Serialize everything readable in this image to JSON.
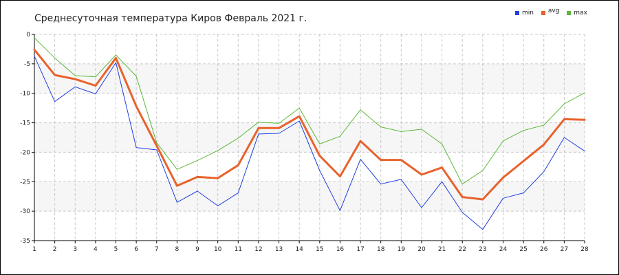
{
  "chart_data": {
    "type": "line",
    "title": "Среднесуточная температура Киров  Февраль 2021 г.",
    "xlabel": "",
    "ylabel": "",
    "x": [
      1,
      2,
      3,
      4,
      5,
      6,
      7,
      8,
      9,
      10,
      11,
      12,
      13,
      14,
      15,
      16,
      17,
      18,
      19,
      20,
      21,
      22,
      23,
      24,
      25,
      26,
      27,
      28
    ],
    "xlim": [
      1,
      28
    ],
    "ylim": [
      -35,
      0
    ],
    "yticks": [
      0,
      -5,
      -10,
      -15,
      -20,
      -25,
      -30,
      -35
    ],
    "grid": true,
    "legend_position": "top-right",
    "series": [
      {
        "name": "min",
        "color": "#1f3fe0",
        "values": [
          -3.7,
          -11.4,
          -8.9,
          -10.1,
          -4.8,
          -19.2,
          -19.6,
          -28.5,
          -26.6,
          -29.1,
          -26.9,
          -16.9,
          -16.8,
          -14.7,
          -23.1,
          -29.9,
          -21.2,
          -25.4,
          -24.6,
          -29.4,
          -25.0,
          -30.2,
          -33.1,
          -27.8,
          -26.9,
          -23.3,
          -17.5,
          -19.8
        ]
      },
      {
        "name": "avg",
        "color": "#e8622c",
        "values": [
          -2.6,
          -6.9,
          -7.6,
          -8.7,
          -4.0,
          -12.2,
          -18.9,
          -25.7,
          -24.2,
          -24.4,
          -22.2,
          -15.9,
          -15.9,
          -13.9,
          -20.6,
          -24.1,
          -18.1,
          -21.3,
          -21.3,
          -23.8,
          -22.6,
          -27.6,
          -28.0,
          -24.3,
          -21.5,
          -18.7,
          -14.4,
          -14.5
        ]
      },
      {
        "name": "max",
        "color": "#5cb83a",
        "values": [
          -0.6,
          -4.0,
          -7.0,
          -7.2,
          -3.5,
          -7.1,
          -18.4,
          -22.9,
          -21.4,
          -19.7,
          -17.6,
          -14.9,
          -15.1,
          -12.5,
          -18.6,
          -17.3,
          -12.8,
          -15.7,
          -16.5,
          -16.1,
          -18.6,
          -25.4,
          -23.1,
          -18.1,
          -16.3,
          -15.4,
          -11.8,
          -9.9
        ]
      }
    ]
  }
}
